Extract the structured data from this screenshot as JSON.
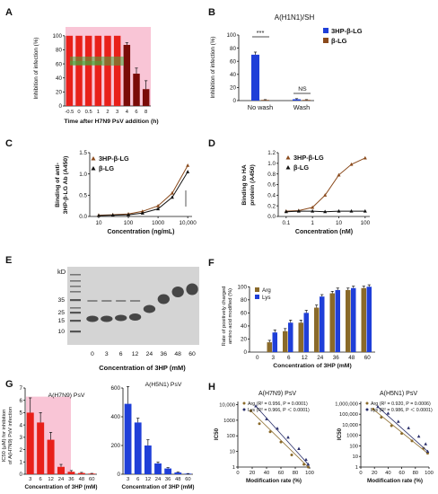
{
  "panels": {
    "A": "A",
    "B": "B",
    "C": "C",
    "D": "D",
    "E": "E",
    "F": "F",
    "G": "G",
    "H": "H"
  },
  "colors": {
    "red": "#e8201a",
    "darkred": "#7a0c08",
    "pink": "#f7b6cc",
    "green": "#46a83c",
    "blue": "#1f3fd8",
    "brown": "#8a4a1c",
    "olive": "#8a6a2a",
    "navy": "#2a2f6a",
    "bandDark": "#3a3a3a",
    "gelBg": "#d4d4d4"
  },
  "chart_data": [
    {
      "panel": "A",
      "type": "bar",
      "categories": [
        "-0.5",
        "0",
        "0.5",
        "1",
        "2",
        "3",
        "4",
        "6",
        "8"
      ],
      "values": [
        100,
        100,
        100,
        100,
        100,
        100,
        87,
        46,
        24
      ],
      "errors": [
        0,
        0,
        0,
        0,
        0,
        0,
        3,
        8,
        12
      ],
      "ylabel": "Inhibition of infection (%)",
      "xlabel": "Time after H7N9 PsV addition (h)",
      "yticks": [
        "0",
        "20",
        "40",
        "60",
        "80",
        "100"
      ],
      "ylim": [
        0,
        110
      ]
    },
    {
      "panel": "B",
      "type": "bar",
      "title": "A(H1N1)/SH",
      "categories": [
        "No wash",
        "Wash"
      ],
      "series": [
        {
          "name": "3HP-β-LG",
          "values": [
            70,
            2
          ],
          "errors": [
            4,
            1
          ]
        },
        {
          "name": "β-LG",
          "values": [
            1,
            1
          ],
          "errors": [
            0.5,
            0.5
          ]
        }
      ],
      "ylabel": "Inhibition of infection (%)",
      "yticks": [
        "0",
        "20",
        "40",
        "60",
        "80",
        "100"
      ],
      "ylim": [
        0,
        100
      ],
      "annotations": [
        "***",
        "NS"
      ]
    },
    {
      "panel": "C",
      "type": "line",
      "x": [
        10,
        30,
        100,
        300,
        1000,
        3000,
        10000
      ],
      "series": [
        {
          "name": "3HP-β-LG",
          "values": [
            0.03,
            0.04,
            0.06,
            0.12,
            0.25,
            0.55,
            1.2
          ]
        },
        {
          "name": "β-LG",
          "values": [
            0.02,
            0.03,
            0.04,
            0.08,
            0.18,
            0.45,
            1.05
          ]
        }
      ],
      "ylabel": "Binding of anti-3HP-β-LG Ab (A450)",
      "xlabel": "Concentration (ng/mL)",
      "yticks": [
        "0.0",
        "0.5",
        "1.0",
        "1.5"
      ],
      "ylim": [
        0,
        1.5
      ],
      "xticks": [
        "10",
        "100",
        "1000",
        "10,000"
      ],
      "xscale": "log"
    },
    {
      "panel": "D",
      "type": "line",
      "x": [
        0.1,
        0.3,
        1,
        3,
        10,
        30,
        100
      ],
      "series": [
        {
          "name": "3HP-β-LG",
          "values": [
            0.1,
            0.11,
            0.17,
            0.4,
            0.78,
            0.98,
            1.1
          ]
        },
        {
          "name": "β-LG",
          "values": [
            0.09,
            0.1,
            0.1,
            0.09,
            0.1,
            0.1,
            0.1
          ]
        }
      ],
      "ylabel": "Binding to HA protein (A450)",
      "xlabel": "Concentration (nM)",
      "yticks": [
        "0.0",
        "0.2",
        "0.4",
        "0.6",
        "0.8",
        "1.0",
        "1.2"
      ],
      "ylim": [
        0,
        1.2
      ],
      "xticks": [
        "0.1",
        "1",
        "10",
        "100"
      ],
      "xscale": "log"
    },
    {
      "panel": "E",
      "type": "gel",
      "ylabel": "kD",
      "markers": [
        "35",
        "25",
        "15",
        "10"
      ],
      "lanes": [
        "0",
        "3",
        "6",
        "12",
        "24",
        "36",
        "48",
        "60"
      ],
      "xlabel": "Concentration of 3HP (mM)"
    },
    {
      "panel": "F",
      "type": "bar",
      "categories": [
        "0",
        "3",
        "6",
        "12",
        "24",
        "36",
        "48",
        "60"
      ],
      "series": [
        {
          "name": "Arg",
          "values": [
            0,
            15,
            32,
            45,
            68,
            90,
            95,
            98
          ],
          "errors": [
            0,
            3,
            4,
            4,
            4,
            3,
            3,
            3
          ]
        },
        {
          "name": "Lys",
          "values": [
            0,
            30,
            45,
            60,
            85,
            95,
            98,
            100
          ],
          "errors": [
            0,
            4,
            4,
            4,
            3,
            3,
            3,
            3
          ]
        }
      ],
      "ylabel": "Rate of positively charged amino acid modified (%)",
      "xlabel": "Concentration of 3HP (mM)",
      "yticks": [
        "0",
        "20",
        "40",
        "60",
        "80",
        "100"
      ],
      "ylim": [
        0,
        110
      ]
    },
    {
      "panel": "G1",
      "type": "bar",
      "title": "A(H7N9) PsV",
      "categories": [
        "3",
        "6",
        "12",
        "24",
        "36",
        "48",
        "60"
      ],
      "values": [
        5,
        4.2,
        2.8,
        0.6,
        0.2,
        0.1,
        0.05
      ],
      "errors": [
        1.2,
        0.8,
        0.6,
        0.2,
        0.1,
        0.05,
        0.02
      ],
      "ylabel": "IC50 (μM) for inhibition of A(H7N9) PsV infection",
      "xlabel": "Concentration of 3HP (mM)",
      "yticks": [
        "0",
        "1",
        "2",
        "3",
        "4",
        "5",
        "6",
        "7"
      ],
      "ylim": [
        0,
        7
      ]
    },
    {
      "panel": "G2",
      "type": "bar",
      "title": "A(H5N1) PsV",
      "categories": [
        "3",
        "6",
        "12",
        "24",
        "36",
        "48",
        "60"
      ],
      "values": [
        490,
        360,
        200,
        75,
        40,
        12,
        4
      ],
      "errors": [
        120,
        30,
        40,
        10,
        6,
        3,
        1
      ],
      "xlabel": "Concentration of 3HP (mM)",
      "yticks": [
        "0",
        "200",
        "400",
        "600"
      ],
      "ylim": [
        0,
        600
      ]
    },
    {
      "panel": "H1",
      "type": "scatter",
      "title": "A(H7N9) PsV",
      "series": [
        {
          "name": "Arg",
          "x": [
            18,
            30,
            45,
            60,
            75,
            92,
            98
          ],
          "y": [
            4000,
            600,
            180,
            40,
            6,
            1.5,
            1
          ]
        },
        {
          "name": "Lys",
          "x": [
            25,
            40,
            55,
            70,
            85,
            95,
            98
          ],
          "y": [
            8000,
            1200,
            300,
            80,
            15,
            3,
            1.5
          ]
        }
      ],
      "stats": [
        "Arg  (R² = 0.956, P = 0.0001)",
        "Lys  (R² = 0.966, P ＜ 0.0001)"
      ],
      "ylabel": "IC50",
      "xlabel": "Modification rate (%)",
      "yticks": [
        "1",
        "10",
        "100",
        "1000",
        "10,000"
      ],
      "yscale": "log",
      "xticks": [
        "0",
        "20",
        "40",
        "60",
        "80",
        "100"
      ],
      "xlim": [
        0,
        100
      ]
    },
    {
      "panel": "H2",
      "type": "scatter",
      "title": "A(H5N1) PsV",
      "series": [
        {
          "name": "Arg",
          "x": [
            18,
            30,
            45,
            60,
            75,
            92,
            98
          ],
          "y": [
            300000,
            50000,
            8000,
            1500,
            300,
            60,
            20
          ]
        },
        {
          "name": "Lys",
          "x": [
            25,
            40,
            55,
            70,
            85,
            95,
            98
          ],
          "y": [
            500000,
            120000,
            20000,
            5000,
            800,
            150,
            30
          ]
        }
      ],
      "stats": [
        "Arg  (R² = 0.920, P = 0.0006)",
        "Lys  (R² = 0.986, P ＜ 0.0001)"
      ],
      "ylabel": "IC50",
      "xlabel": "Modification rate (%)",
      "yticks": [
        "1",
        "10",
        "100",
        "1000",
        "10,000",
        "100,000",
        "1,000,000"
      ],
      "yscale": "log",
      "xticks": [
        "0",
        "20",
        "40",
        "60",
        "80",
        "100"
      ],
      "xlim": [
        0,
        100
      ]
    }
  ]
}
